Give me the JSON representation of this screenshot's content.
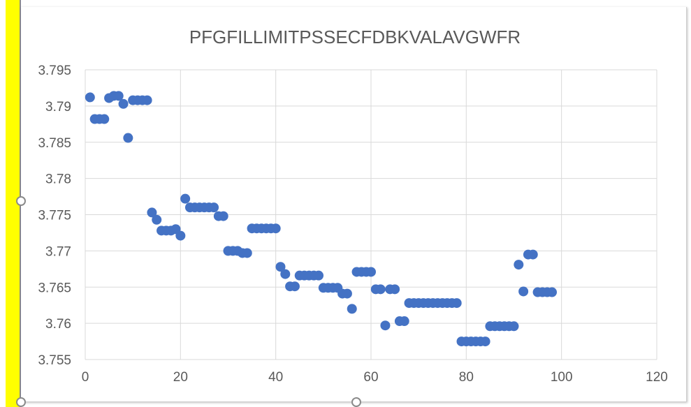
{
  "chart_data": {
    "type": "scatter",
    "title": "PFGFILLIMITPSSECFDBKVALAVGWFR",
    "xlabel": "",
    "ylabel": "",
    "xlim": [
      0,
      120
    ],
    "ylim": [
      3.755,
      3.795
    ],
    "x_ticks": [
      "0",
      "20",
      "40",
      "60",
      "80",
      "100",
      "120"
    ],
    "y_ticks": [
      "3.755",
      "3.76",
      "3.765",
      "3.77",
      "3.775",
      "3.78",
      "3.785",
      "3.79",
      "3.795"
    ],
    "grid": true,
    "legend": "none",
    "marker_color": "#4472c4",
    "points": [
      [
        1,
        3.7912
      ],
      [
        2,
        3.7882
      ],
      [
        3,
        3.7882
      ],
      [
        4,
        3.7882
      ],
      [
        5,
        3.7911
      ],
      [
        6,
        3.7914
      ],
      [
        7,
        3.7914
      ],
      [
        8,
        3.7903
      ],
      [
        9,
        3.7856
      ],
      [
        10,
        3.7908
      ],
      [
        11,
        3.7908
      ],
      [
        12,
        3.7908
      ],
      [
        13,
        3.7908
      ],
      [
        14,
        3.7753
      ],
      [
        15,
        3.7743
      ],
      [
        16,
        3.7728
      ],
      [
        17,
        3.7728
      ],
      [
        18,
        3.7728
      ],
      [
        19,
        3.773
      ],
      [
        20,
        3.7721
      ],
      [
        21,
        3.7772
      ],
      [
        22,
        3.776
      ],
      [
        23,
        3.776
      ],
      [
        24,
        3.776
      ],
      [
        25,
        3.776
      ],
      [
        26,
        3.776
      ],
      [
        27,
        3.776
      ],
      [
        28,
        3.7748
      ],
      [
        29,
        3.7748
      ],
      [
        30,
        3.77
      ],
      [
        31,
        3.77
      ],
      [
        32,
        3.77
      ],
      [
        33,
        3.7697
      ],
      [
        34,
        3.7697
      ],
      [
        35,
        3.7731
      ],
      [
        36,
        3.7731
      ],
      [
        37,
        3.7731
      ],
      [
        38,
        3.7731
      ],
      [
        39,
        3.7731
      ],
      [
        40,
        3.7731
      ],
      [
        41,
        3.7678
      ],
      [
        42,
        3.7668
      ],
      [
        43,
        3.7651
      ],
      [
        44,
        3.7651
      ],
      [
        45,
        3.7666
      ],
      [
        46,
        3.7666
      ],
      [
        47,
        3.7666
      ],
      [
        48,
        3.7666
      ],
      [
        49,
        3.7666
      ],
      [
        50,
        3.7649
      ],
      [
        51,
        3.7649
      ],
      [
        52,
        3.7649
      ],
      [
        53,
        3.7649
      ],
      [
        54,
        3.7641
      ],
      [
        55,
        3.7641
      ],
      [
        56,
        3.762
      ],
      [
        57,
        3.7671
      ],
      [
        58,
        3.7671
      ],
      [
        59,
        3.7671
      ],
      [
        60,
        3.7671
      ],
      [
        61,
        3.7647
      ],
      [
        62,
        3.7647
      ],
      [
        63,
        3.7597
      ],
      [
        64,
        3.7647
      ],
      [
        65,
        3.7647
      ],
      [
        66,
        3.7603
      ],
      [
        67,
        3.7603
      ],
      [
        68,
        3.7628
      ],
      [
        69,
        3.7628
      ],
      [
        70,
        3.7628
      ],
      [
        71,
        3.7628
      ],
      [
        72,
        3.7628
      ],
      [
        73,
        3.7628
      ],
      [
        74,
        3.7628
      ],
      [
        75,
        3.7628
      ],
      [
        76,
        3.7628
      ],
      [
        77,
        3.7628
      ],
      [
        78,
        3.7628
      ],
      [
        79,
        3.7575
      ],
      [
        80,
        3.7575
      ],
      [
        81,
        3.7575
      ],
      [
        82,
        3.7575
      ],
      [
        83,
        3.7575
      ],
      [
        84,
        3.7575
      ],
      [
        85,
        3.7596
      ],
      [
        86,
        3.7596
      ],
      [
        87,
        3.7596
      ],
      [
        88,
        3.7596
      ],
      [
        89,
        3.7596
      ],
      [
        90,
        3.7596
      ],
      [
        91,
        3.7681
      ],
      [
        92,
        3.7644
      ],
      [
        93,
        3.7695
      ],
      [
        94,
        3.7695
      ],
      [
        95,
        3.7643
      ],
      [
        96,
        3.7643
      ],
      [
        97,
        3.7643
      ],
      [
        98,
        3.7643
      ]
    ]
  }
}
